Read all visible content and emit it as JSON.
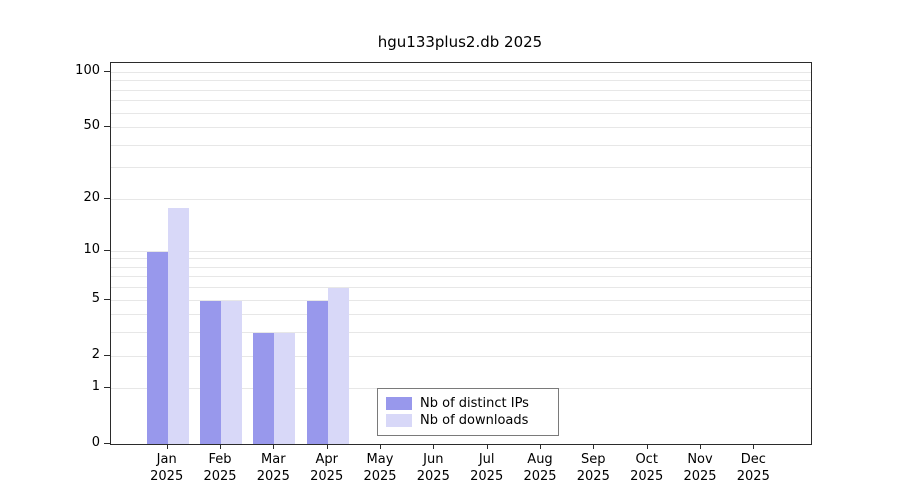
{
  "title": "hgu133plus2.db 2025",
  "chart_data": {
    "type": "bar",
    "title": "hgu133plus2.db 2025",
    "categories": [
      "Jan",
      "Feb",
      "Mar",
      "Apr",
      "May",
      "Jun",
      "Jul",
      "Aug",
      "Sep",
      "Oct",
      "Nov",
      "Dec"
    ],
    "year": "2025",
    "series": [
      {
        "name": "Nb of distinct IPs",
        "color": "#9898ec",
        "values": [
          10,
          5,
          3,
          5,
          0,
          0,
          0,
          0,
          0,
          0,
          0,
          0
        ]
      },
      {
        "name": "Nb of downloads",
        "color": "#d8d8f8",
        "values": [
          18,
          5,
          3,
          6,
          0,
          0,
          0,
          0,
          0,
          0,
          0,
          0
        ]
      }
    ],
    "y_axis": {
      "scale": "log1p",
      "tick_values": [
        0,
        1,
        2,
        5,
        10,
        20,
        50,
        100
      ],
      "gridline_values": [
        1,
        2,
        3,
        4,
        5,
        6,
        7,
        8,
        9,
        10,
        20,
        30,
        40,
        50,
        60,
        70,
        80,
        90,
        100
      ],
      "ylim": [
        0,
        100
      ]
    },
    "legend": {
      "position": "inside-bottom-center"
    },
    "grid": true,
    "colors": {
      "distinct_ips": "#9898ec",
      "downloads": "#d8d8f8",
      "gridline": "#e7e7e7",
      "axis": "#2b2b2b"
    }
  }
}
